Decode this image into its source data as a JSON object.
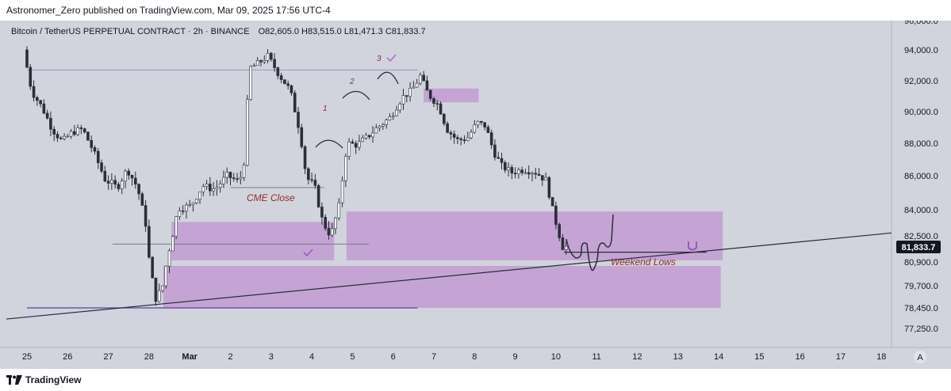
{
  "publisher": {
    "text": "Astronomer_Zero published on TradingView.com, Mar 09, 2025 17:56 UTC-4"
  },
  "header": {
    "symbol": "Bitcoin / TetherUS PERPETUAL CONTRACT · 2h · BINANCE",
    "ohlc": "O82,605.0  H83,515.0  L81,471.3  C81,833.7"
  },
  "price_axis": {
    "labels": [
      "96,000.0",
      "94,000.0",
      "92,000.0",
      "90,000.0",
      "88,000.0",
      "86,000.0",
      "84,000.0",
      "82,500.0",
      "80,900.0",
      "79,700.0",
      "78,450.0",
      "77,250.0"
    ],
    "last_price": "81,833.7"
  },
  "time_axis": {
    "labels": [
      "25",
      "26",
      "27",
      "28",
      "Mar",
      "2",
      "3",
      "4",
      "5",
      "6",
      "7",
      "8",
      "9",
      "10",
      "11",
      "12",
      "13",
      "14",
      "15",
      "16",
      "17",
      "18"
    ],
    "scale_button": "A"
  },
  "annotations": {
    "cme_close": "CME Close",
    "weekend_lows": "Weekend Lows",
    "count_1": "1",
    "count_2": "2",
    "count_3": "3"
  },
  "colors": {
    "background": "#d1d4dc",
    "candle_up": "#ffffff",
    "candle_down": "#2a2e39",
    "zone": "#c39bd3",
    "annotation": "#8f2d2d"
  },
  "footer": {
    "brand": "TradingView",
    "logo_icon": "tradingview-logo-icon"
  },
  "chart_data": {
    "type": "candlestick",
    "symbol": "BTCUSDT.P",
    "interval": "2h",
    "exchange": "BINANCE",
    "last_close": 81833.7,
    "open": 82605.0,
    "high": 83515.0,
    "low": 81471.3,
    "y_ticks": [
      96000,
      94000,
      92000,
      90000,
      88000,
      86000,
      84000,
      82500,
      80900,
      79700,
      78450,
      77250
    ],
    "x_ticks": [
      "25",
      "26",
      "27",
      "28",
      "Mar",
      "2",
      "3",
      "4",
      "5",
      "6",
      "7",
      "8",
      "9",
      "10",
      "11",
      "12",
      "13",
      "14",
      "15",
      "16",
      "17",
      "18"
    ],
    "ylim": [
      76700,
      96200
    ],
    "x_range_days": [
      0,
      22.5
    ],
    "price_path": [
      [
        0.0,
        94000
      ],
      [
        0.2,
        91300
      ],
      [
        0.45,
        90300
      ],
      [
        0.7,
        88900
      ],
      [
        0.95,
        88100
      ],
      [
        1.2,
        88700
      ],
      [
        1.45,
        88900
      ],
      [
        1.7,
        87600
      ],
      [
        2.0,
        85800
      ],
      [
        2.3,
        85300
      ],
      [
        2.55,
        86400
      ],
      [
        2.8,
        85300
      ],
      [
        3.0,
        83200
      ],
      [
        3.1,
        80700
      ],
      [
        3.25,
        79000
      ],
      [
        3.4,
        79500
      ],
      [
        3.6,
        81900
      ],
      [
        3.8,
        84100
      ],
      [
        4.1,
        84200
      ],
      [
        4.4,
        85400
      ],
      [
        4.7,
        85200
      ],
      [
        5.0,
        86000
      ],
      [
        5.25,
        85700
      ],
      [
        5.4,
        86100
      ],
      [
        5.55,
        92800
      ],
      [
        5.75,
        93100
      ],
      [
        6.0,
        93600
      ],
      [
        6.3,
        92300
      ],
      [
        6.55,
        91400
      ],
      [
        6.8,
        88600
      ],
      [
        6.95,
        85900
      ],
      [
        7.15,
        85400
      ],
      [
        7.35,
        83300
      ],
      [
        7.55,
        82500
      ],
      [
        7.75,
        84200
      ],
      [
        7.95,
        88000
      ],
      [
        8.2,
        87900
      ],
      [
        8.45,
        88400
      ],
      [
        8.7,
        89000
      ],
      [
        9.0,
        89600
      ],
      [
        9.3,
        90900
      ],
      [
        9.55,
        91400
      ],
      [
        9.75,
        92300
      ],
      [
        9.95,
        91100
      ],
      [
        10.2,
        90400
      ],
      [
        10.4,
        88900
      ],
      [
        10.65,
        88200
      ],
      [
        10.9,
        88300
      ],
      [
        11.15,
        89300
      ],
      [
        11.35,
        89100
      ],
      [
        11.55,
        87500
      ],
      [
        11.75,
        86600
      ],
      [
        12.0,
        86200
      ],
      [
        12.3,
        86400
      ],
      [
        12.6,
        86200
      ],
      [
        12.85,
        85700
      ],
      [
        13.0,
        84000
      ],
      [
        13.15,
        82700
      ],
      [
        13.25,
        81833.7
      ]
    ],
    "zones": [
      {
        "x0": 3.55,
        "x1": 7.55,
        "y_low": 81000,
        "y_high": 83300
      },
      {
        "x0": 7.85,
        "x1": 17.1,
        "y_low": 81000,
        "y_high": 83900
      },
      {
        "x0": 3.35,
        "x1": 17.05,
        "y_low": 78450,
        "y_high": 80700
      },
      {
        "x0": 9.75,
        "x1": 11.1,
        "y_low": 90600,
        "y_high": 91500
      }
    ],
    "levels": [
      {
        "name": "prior high line",
        "x0": 0.0,
        "x1": 9.6,
        "price": 92700
      },
      {
        "name": "CME close",
        "x0": 5.0,
        "x1": 7.3,
        "price": 85300
      },
      {
        "name": "range low line",
        "x0": 2.1,
        "x1": 8.4,
        "price": 82000
      },
      {
        "name": "Weekend Lows",
        "x0": 13.2,
        "x1": 16.7,
        "price": 81500
      },
      {
        "name": "low line",
        "x0": 0.0,
        "x1": 9.6,
        "price": 78450
      }
    ],
    "trendline": {
      "x0": 0.0,
      "price0": 77800,
      "x1": 22.5,
      "price1": 82000
    }
  }
}
